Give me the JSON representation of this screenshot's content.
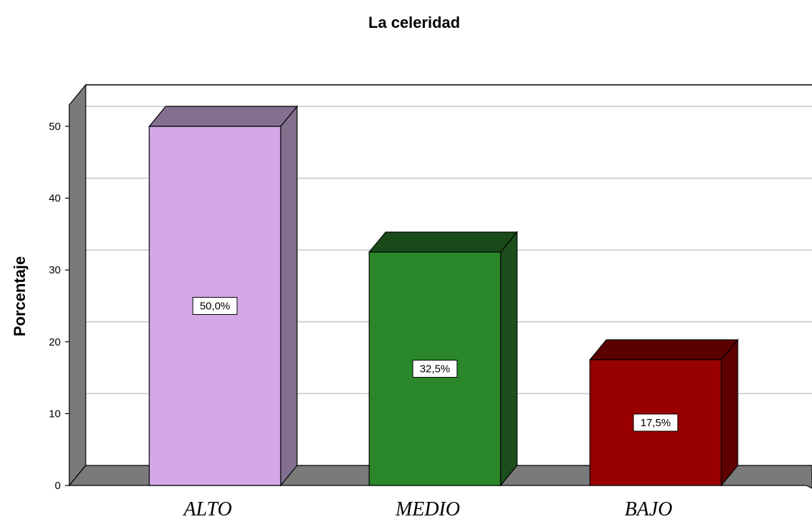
{
  "chart_data": {
    "type": "bar",
    "title": "La celeridad",
    "xlabel": "",
    "ylabel": "Porcentaje",
    "categories": [
      "ALTO",
      "MEDIO",
      "BAJO"
    ],
    "values": [
      50.0,
      32.5,
      17.5
    ],
    "data_labels": [
      "50,0%",
      "32,5%",
      "17,5%"
    ],
    "ylim": [
      0,
      53
    ],
    "yticks": [
      0,
      10,
      20,
      30,
      40,
      50
    ],
    "ytick_labels": [
      "0",
      "10",
      "20",
      "30",
      "40",
      "50"
    ],
    "grid": true,
    "style": "3d",
    "colors": [
      {
        "front": "#d4a8e6",
        "top": "#83708f",
        "side": "#83708f"
      },
      {
        "front": "#2a882a",
        "top": "#1a4a1a",
        "side": "#1d4e1d"
      },
      {
        "front": "#990000",
        "top": "#5a0000",
        "side": "#5e0000"
      }
    ],
    "wall_color": "#7a7a7a",
    "grid_color": "#c8c8c8"
  }
}
